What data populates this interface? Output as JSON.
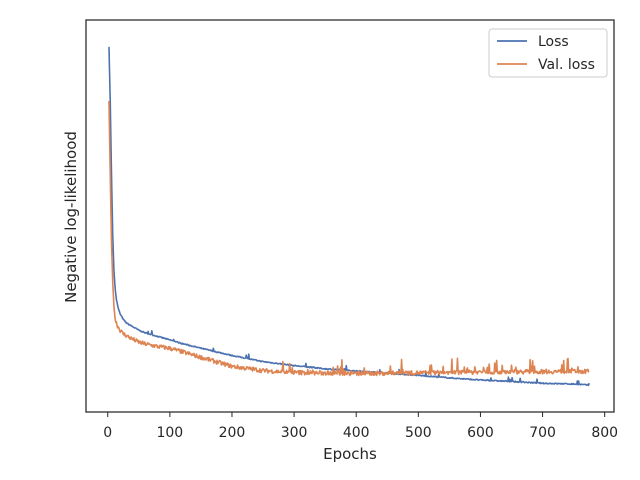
{
  "chart_data": {
    "type": "line",
    "title": "",
    "xlabel": "Epochs",
    "ylabel": "Negative log-likelihood",
    "xlim": [
      -35,
      815
    ],
    "ylim": [
      0,
      1
    ],
    "xticks": [
      0,
      100,
      200,
      300,
      400,
      500,
      600,
      700,
      800
    ],
    "yticks_shown": false,
    "grid": false,
    "legend": "top-right",
    "series": [
      {
        "name": "Loss",
        "color": "#4c72b0",
        "x": [
          2,
          4,
          6,
          8,
          10,
          12,
          14,
          17,
          20,
          25,
          30,
          40,
          50,
          60,
          80,
          100,
          120,
          150,
          200,
          250,
          300,
          350,
          400,
          450,
          500,
          550,
          600,
          650,
          700,
          750,
          775
        ],
        "y": [
          0.97,
          0.82,
          0.62,
          0.45,
          0.35,
          0.3,
          0.27,
          0.245,
          0.23,
          0.215,
          0.205,
          0.195,
          0.185,
          0.178,
          0.168,
          0.158,
          0.148,
          0.135,
          0.115,
          0.098,
          0.087,
          0.078,
          0.072,
          0.066,
          0.06,
          0.053,
          0.047,
          0.043,
          0.038,
          0.036,
          0.033
        ]
      },
      {
        "name": "Val. loss",
        "color": "#dd8452",
        "x": [
          2,
          4,
          6,
          8,
          10,
          12,
          15,
          20,
          25,
          30,
          40,
          50,
          60,
          80,
          100,
          120,
          150,
          200,
          250,
          300,
          350,
          400,
          450,
          500,
          550,
          600,
          650,
          700,
          750,
          775
        ],
        "y": [
          0.82,
          0.62,
          0.43,
          0.32,
          0.25,
          0.215,
          0.2,
          0.185,
          0.175,
          0.17,
          0.16,
          0.152,
          0.147,
          0.14,
          0.135,
          0.125,
          0.11,
          0.085,
          0.073,
          0.068,
          0.066,
          0.065,
          0.066,
          0.067,
          0.068,
          0.069,
          0.07,
          0.07,
          0.071,
          0.071
        ],
        "noise": 0.012
      }
    ]
  }
}
